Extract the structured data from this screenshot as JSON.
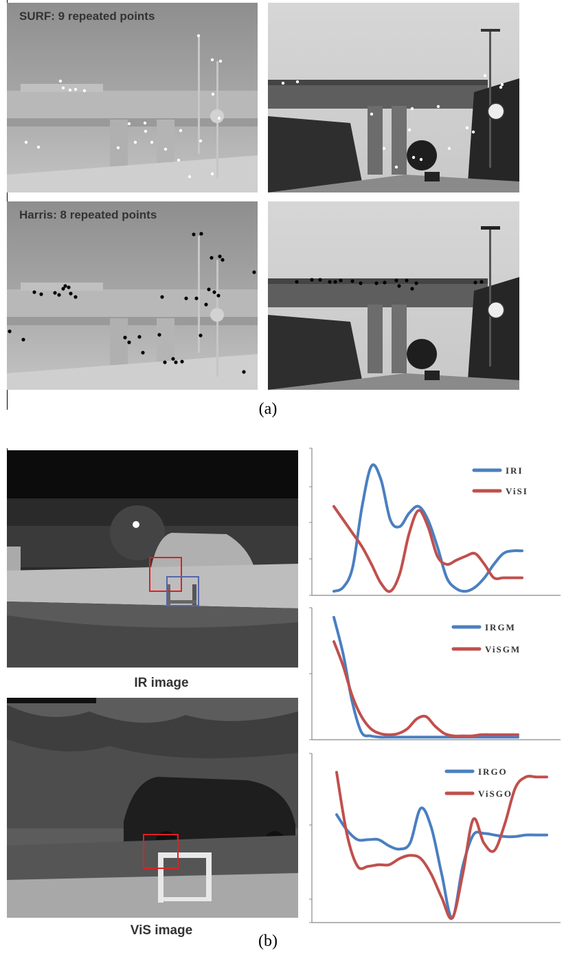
{
  "panel_a": {
    "caption": "(a)",
    "surf_title": "SURF: 9 repeated points",
    "harris_title": "Harris: 8 repeated points"
  },
  "panel_b": {
    "caption": "(b)",
    "ir_label": "IR image",
    "vis_label": "ViS image"
  },
  "colors": {
    "ir_series": "#4a7fc1",
    "vis_series": "#c0504d",
    "roi_box": "#e02020"
  },
  "chart_data": [
    {
      "type": "line",
      "series": [
        {
          "name": "IRI",
          "x": [
            0,
            0.05,
            0.1,
            0.15,
            0.2,
            0.25,
            0.3,
            0.35,
            0.4,
            0.45,
            0.5,
            0.55,
            0.6,
            0.65,
            0.7,
            0.75,
            0.8,
            0.85,
            0.9,
            0.95,
            1.0
          ],
          "values": [
            0.02,
            0.05,
            0.2,
            0.65,
            0.95,
            0.85,
            0.55,
            0.5,
            0.6,
            0.65,
            0.55,
            0.35,
            0.12,
            0.04,
            0.02,
            0.05,
            0.12,
            0.22,
            0.3,
            0.32,
            0.32
          ]
        },
        {
          "name": "ViSI",
          "x": [
            0,
            0.05,
            0.1,
            0.15,
            0.2,
            0.25,
            0.3,
            0.35,
            0.4,
            0.45,
            0.5,
            0.55,
            0.6,
            0.65,
            0.7,
            0.75,
            0.8,
            0.85,
            0.9,
            0.95,
            1.0
          ],
          "values": [
            0.65,
            0.55,
            0.45,
            0.35,
            0.22,
            0.08,
            0.02,
            0.15,
            0.45,
            0.62,
            0.5,
            0.28,
            0.22,
            0.25,
            0.28,
            0.3,
            0.22,
            0.12,
            0.12,
            0.12,
            0.12
          ]
        }
      ]
    },
    {
      "type": "line",
      "series": [
        {
          "name": "IRGM",
          "x": [
            0,
            0.05,
            0.1,
            0.15,
            0.2,
            0.25,
            0.3,
            0.35,
            0.4,
            0.45,
            0.5,
            0.55,
            0.6,
            0.65,
            0.7,
            0.75,
            0.8,
            0.85,
            0.9,
            0.95,
            1.0
          ],
          "values": [
            1.0,
            0.7,
            0.3,
            0.05,
            0.02,
            0.01,
            0.01,
            0.01,
            0.01,
            0.01,
            0.01,
            0.01,
            0.01,
            0.01,
            0.01,
            0.01,
            0.01,
            0.01,
            0.01,
            0.01,
            0.01
          ]
        },
        {
          "name": "ViSGM",
          "x": [
            0,
            0.05,
            0.1,
            0.15,
            0.2,
            0.25,
            0.3,
            0.35,
            0.4,
            0.45,
            0.5,
            0.55,
            0.6,
            0.65,
            0.7,
            0.75,
            0.8,
            0.85,
            0.9,
            0.95,
            1.0
          ],
          "values": [
            0.8,
            0.6,
            0.35,
            0.18,
            0.08,
            0.04,
            0.03,
            0.04,
            0.08,
            0.16,
            0.18,
            0.1,
            0.04,
            0.02,
            0.02,
            0.02,
            0.03,
            0.03,
            0.03,
            0.03,
            0.03
          ]
        }
      ]
    },
    {
      "type": "line",
      "series": [
        {
          "name": "IRGO",
          "x": [
            0,
            0.05,
            0.1,
            0.15,
            0.2,
            0.25,
            0.3,
            0.35,
            0.4,
            0.45,
            0.5,
            0.55,
            0.6,
            0.65,
            0.7,
            0.75,
            0.8,
            0.85,
            0.9,
            0.95,
            1.0
          ],
          "values": [
            0.68,
            0.58,
            0.52,
            0.52,
            0.52,
            0.48,
            0.46,
            0.5,
            0.72,
            0.6,
            0.3,
            0.02,
            0.35,
            0.55,
            0.56,
            0.55,
            0.54,
            0.54,
            0.55,
            0.55,
            0.55
          ]
        },
        {
          "name": "ViSGO",
          "x": [
            0,
            0.05,
            0.1,
            0.15,
            0.2,
            0.25,
            0.3,
            0.35,
            0.4,
            0.45,
            0.5,
            0.55,
            0.6,
            0.65,
            0.7,
            0.75,
            0.8,
            0.85,
            0.9,
            0.95,
            1.0
          ],
          "values": [
            0.95,
            0.55,
            0.35,
            0.35,
            0.36,
            0.36,
            0.4,
            0.42,
            0.4,
            0.3,
            0.15,
            0.02,
            0.3,
            0.65,
            0.5,
            0.45,
            0.62,
            0.85,
            0.92,
            0.92,
            0.92
          ]
        }
      ]
    }
  ]
}
